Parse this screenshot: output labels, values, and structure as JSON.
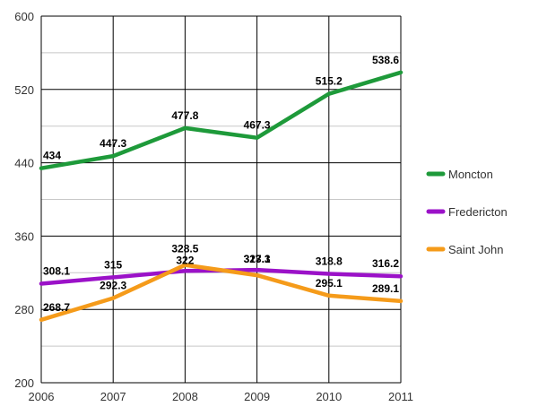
{
  "chart_data": {
    "type": "line",
    "x": [
      "2006",
      "2007",
      "2008",
      "2009",
      "2010",
      "2011"
    ],
    "ylim": [
      200,
      600
    ],
    "y_ticks": [
      "200",
      "280",
      "360",
      "440",
      "520",
      "600"
    ],
    "grid": true,
    "legend_position": "right",
    "series": [
      {
        "name": "Moncton",
        "color": "#1e9a3a",
        "values": [
          434,
          447.3,
          477.8,
          467.3,
          515.2,
          538.6
        ],
        "labels": [
          "434",
          "447.3",
          "477.8",
          "467.3",
          "515.2",
          "538.6"
        ]
      },
      {
        "name": "Fredericton",
        "color": "#9b12c8",
        "values": [
          308.1,
          315,
          322,
          323.1,
          318.8,
          316.2
        ],
        "labels": [
          "308.1",
          "315",
          "322",
          "323.1",
          "318.8",
          "316.2"
        ]
      },
      {
        "name": "Saint John",
        "color": "#f59b1a",
        "values": [
          268.7,
          292.3,
          328.5,
          317.3,
          295.1,
          289.1
        ],
        "labels": [
          "268.7",
          "292.3",
          "328.5",
          "317.3",
          "295.1",
          "289.1"
        ]
      }
    ]
  }
}
